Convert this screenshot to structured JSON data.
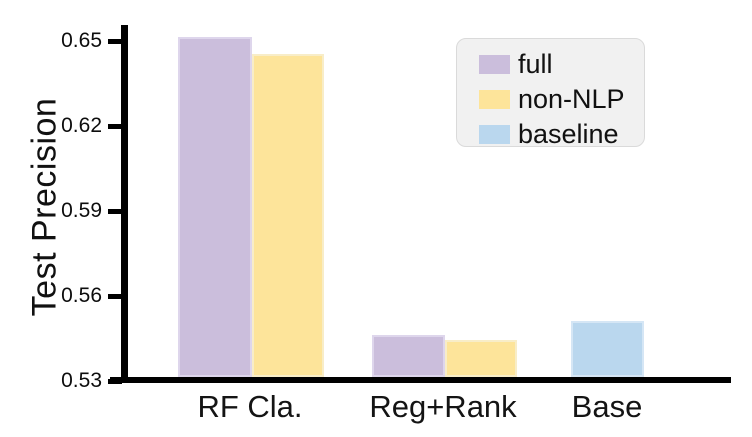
{
  "chart_data": {
    "type": "bar",
    "title": "",
    "xlabel": "",
    "ylabel": "Test Precision",
    "categories": [
      "RF Cla.",
      "Reg+Rank",
      "Base"
    ],
    "series": [
      {
        "name": "full",
        "color": "#cbbedc",
        "edge": "#ded6ec",
        "values": [
          0.651,
          0.546,
          null
        ]
      },
      {
        "name": "non-NLP",
        "color": "#fde49a",
        "edge": "#f8edc8",
        "values": [
          0.645,
          0.544,
          null
        ]
      },
      {
        "name": "baseline",
        "color": "#bad7ee",
        "edge": "#d5e6f5",
        "values": [
          null,
          null,
          0.551
        ]
      }
    ],
    "ylim": [
      0.53,
      0.655
    ],
    "yticks": [
      0.53,
      0.56,
      0.59,
      0.62,
      0.65
    ],
    "ytick_labels": [
      "0.53",
      "0.56",
      "0.59",
      "0.62",
      "0.65"
    ],
    "grid": false,
    "legend": {
      "position": "upper-right",
      "entries": [
        "full",
        "non-NLP",
        "baseline"
      ]
    },
    "colors": {
      "axis": "#000000",
      "background": "#ffffff",
      "text": "#111111"
    }
  }
}
